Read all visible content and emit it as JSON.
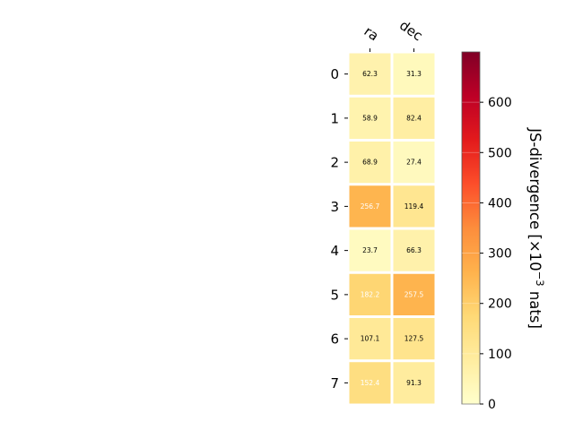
{
  "chart_data": {
    "type": "heatmap",
    "columns": [
      "ra",
      "dec"
    ],
    "rows": [
      "0",
      "1",
      "2",
      "3",
      "4",
      "5",
      "6",
      "7"
    ],
    "values": [
      [
        62.3,
        31.3
      ],
      [
        58.9,
        82.4
      ],
      [
        68.9,
        27.4
      ],
      [
        256.7,
        119.4
      ],
      [
        23.7,
        66.3
      ],
      [
        182.2,
        257.5
      ],
      [
        107.1,
        127.5
      ],
      [
        152.4,
        91.3
      ]
    ],
    "cell_labels": [
      [
        "62.3",
        "31.3"
      ],
      [
        "58.9",
        "82.4"
      ],
      [
        "68.9",
        "27.4"
      ],
      [
        "256.7",
        "119.4"
      ],
      [
        "23.7",
        "66.3"
      ],
      [
        "182.2",
        "257.5"
      ],
      [
        "107.1",
        "127.5"
      ],
      [
        "152.4",
        "91.3"
      ]
    ],
    "colorbar": {
      "label_prefix": "JS-divergence [×10",
      "label_exponent": "−3",
      "label_suffix": " nats]",
      "vmin": 0,
      "vmax": 700,
      "ticks": [
        0,
        100,
        200,
        300,
        400,
        500,
        600
      ],
      "tick_labels": [
        "0",
        "100",
        "200",
        "300",
        "400",
        "500",
        "600"
      ],
      "colormap": "YlOrRd",
      "colormap_stops": [
        "#ffffcc",
        "#ffeda0",
        "#fed976",
        "#feb24c",
        "#fd8d3c",
        "#fc4e2a",
        "#e31a1c",
        "#bd0026",
        "#800026"
      ]
    },
    "grid_line_color": "#ffffff"
  }
}
